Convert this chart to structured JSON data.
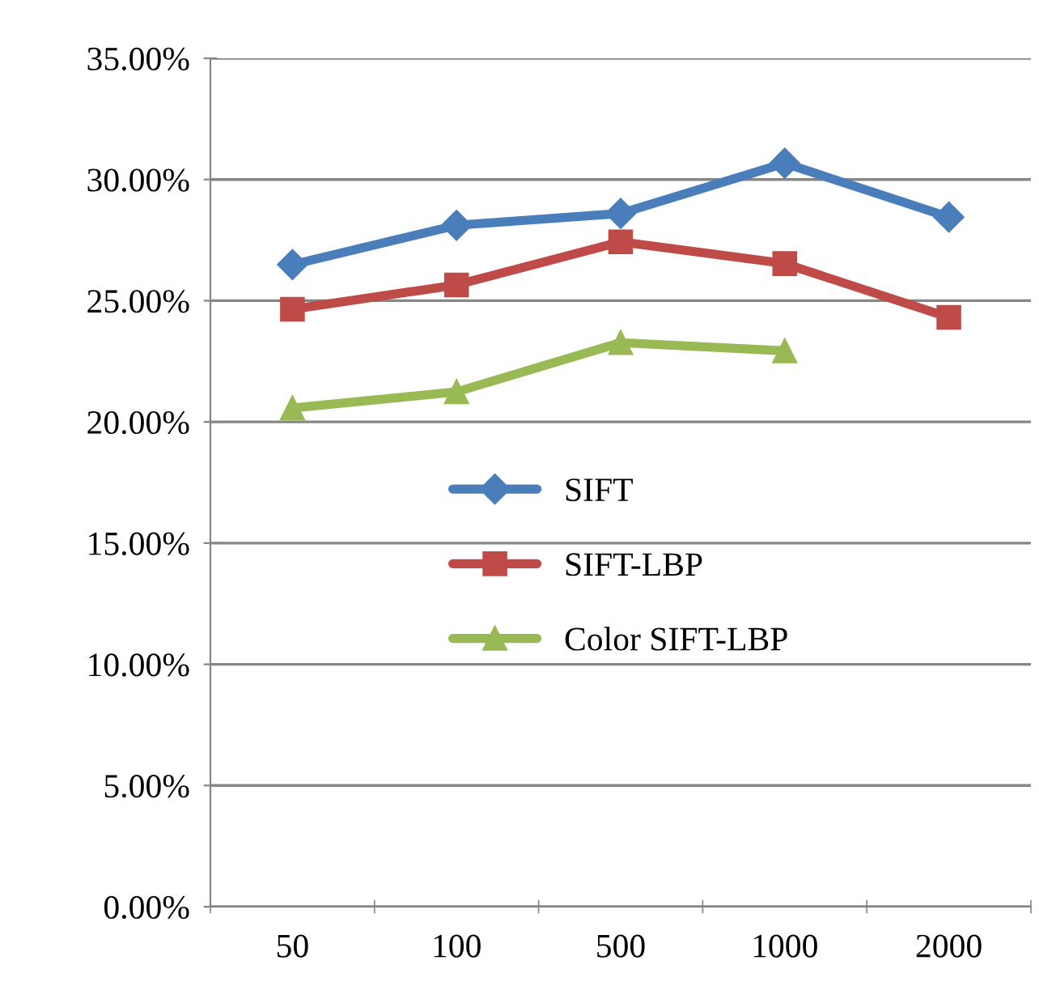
{
  "chart_data": {
    "type": "line",
    "categories": [
      "50",
      "100",
      "500",
      "1000",
      "2000"
    ],
    "series": [
      {
        "name": "SIFT",
        "color": "#4a7ebb",
        "marker": "diamond",
        "values": [
          26.49,
          28.11,
          28.6,
          30.67,
          28.45
        ]
      },
      {
        "name": "SIFT-LBP",
        "color": "#be4b48",
        "marker": "square",
        "values": [
          24.65,
          25.65,
          27.43,
          26.53,
          24.31
        ]
      },
      {
        "name": "Color SIFT-LBP",
        "color": "#98b954",
        "marker": "triangle",
        "values": [
          20.57,
          21.24,
          23.27,
          22.93,
          null
        ]
      }
    ],
    "ylim": [
      0,
      35
    ],
    "yticks": [
      {
        "value": 0,
        "label": "0.00%"
      },
      {
        "value": 5,
        "label": "5.00%"
      },
      {
        "value": 10,
        "label": "10.00%"
      },
      {
        "value": 15,
        "label": "15.00%"
      },
      {
        "value": 20,
        "label": "20.00%"
      },
      {
        "value": 25,
        "label": "25.00%"
      },
      {
        "value": 30,
        "label": "30.00%"
      },
      {
        "value": 35,
        "label": "35.00%"
      }
    ],
    "grid": "y",
    "legend": "center",
    "line_style": "solid"
  }
}
